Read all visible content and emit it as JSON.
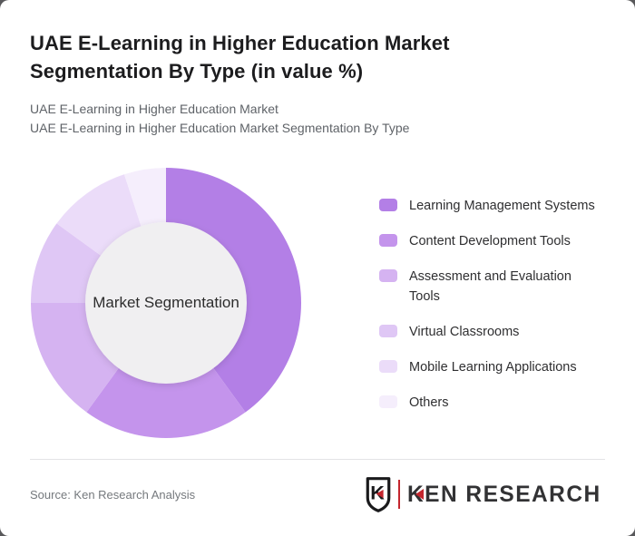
{
  "page": {
    "title": "UAE E-Learning in Higher Education Market Segmentation By Type (in value %)",
    "subtitle_line1": "UAE E-Learning in Higher Education Market",
    "subtitle_line2": "UAE E-Learning in Higher Education Market Segmentation By Type"
  },
  "chart_data": {
    "type": "pie",
    "donut": true,
    "center_label": "Market Segmentation",
    "categories": [
      "Learning Management Systems",
      "Content Development Tools",
      "Assessment and Evaluation Tools",
      "Virtual Classrooms",
      "Mobile Learning Applications",
      "Others"
    ],
    "values": [
      40,
      20,
      15,
      10,
      10,
      5
    ],
    "unit": "%",
    "colors": [
      "#b37fe6",
      "#c494ec",
      "#d5b3f1",
      "#dfc7f5",
      "#ebdcf9",
      "#f5eefc"
    ],
    "legend_position": "right",
    "start_angle_deg": 0,
    "direction": "clockwise",
    "inner_radius_ratio": 0.6,
    "title": "UAE E-Learning in Higher Education Market Segmentation By Type (in value %)"
  },
  "footer": {
    "source": "Source: Ken Research Analysis",
    "logo_letter": "K",
    "logo_text": "KEN RESEARCH"
  },
  "colors": {
    "card_background": "#ffffff",
    "page_corner_background": "#59595b",
    "donut_hole": "#f0eff1",
    "logo_red": "#c4262e",
    "divider": "#e3e3e6"
  }
}
